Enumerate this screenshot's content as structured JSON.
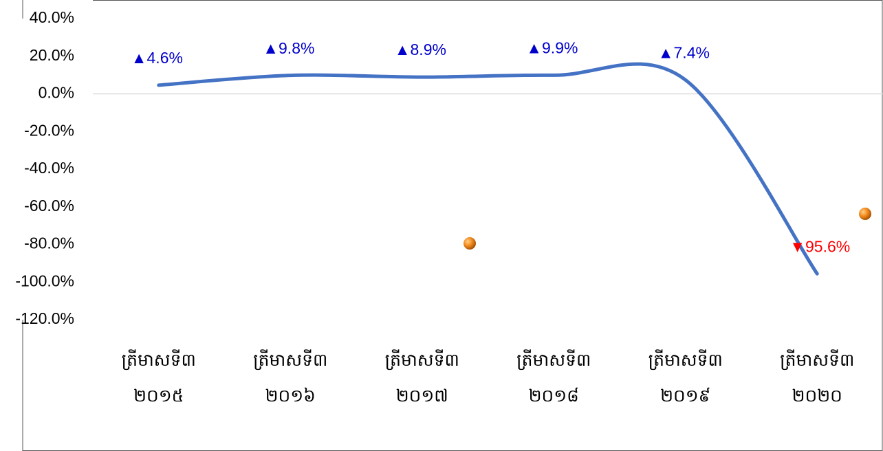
{
  "chart_data": {
    "type": "line",
    "categories": [
      "ត្រីមាសទី៣ ២០១៥",
      "ត្រីមាសទី៣ ២០១៦",
      "ត្រីមាសទី៣ ២០១៧",
      "ត្រីមាសទី៣ ២០១៨",
      "ត្រីមាសទី៣ ២០១៩",
      "ត្រីមាសទី៣ ២០២០"
    ],
    "series": [
      {
        "color": "#4472c4",
        "values": [
          4.6,
          9.8,
          8.9,
          9.9,
          7.4,
          -95.6
        ],
        "value_labels": [
          "▲4.6%",
          "▲9.8%",
          "▲8.9%",
          "▲9.9%",
          "▲7.4%",
          "▼95.6%"
        ],
        "value_label_colors": [
          "#0000cc",
          "#0000cc",
          "#0000cc",
          "#0000cc",
          "#0000cc",
          "#ff0000"
        ]
      }
    ],
    "ylim": [
      -120,
      40
    ],
    "yticks": [
      {
        "value": -120,
        "label": "-120.0%"
      },
      {
        "value": -100,
        "label": "-100.0%"
      },
      {
        "value": -80,
        "label": "-80.0%"
      },
      {
        "value": -60,
        "label": "-60.0%"
      },
      {
        "value": -40,
        "label": "-40.0%"
      },
      {
        "value": -20,
        "label": "-20.0%"
      },
      {
        "value": 0,
        "label": "0.0%"
      },
      {
        "value": 20,
        "label": "20.0%"
      },
      {
        "value": 40,
        "label": "40.0%"
      }
    ],
    "grid": false
  }
}
